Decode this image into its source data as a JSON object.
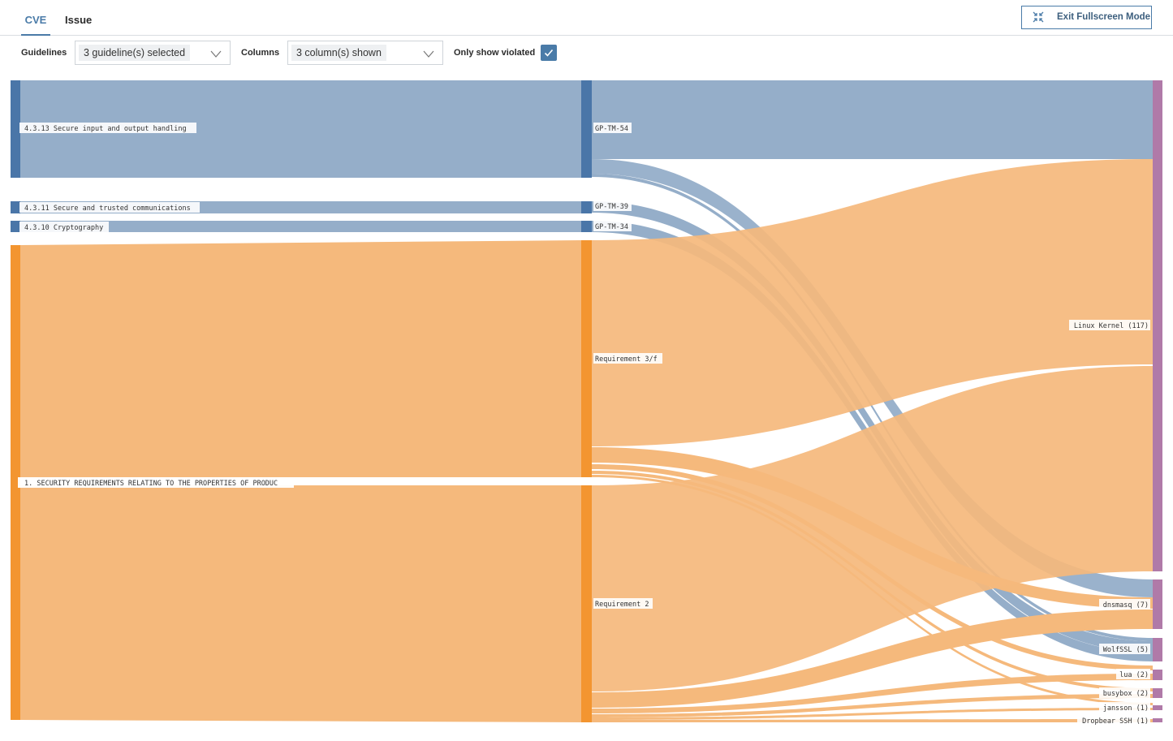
{
  "tabs": [
    {
      "label": "CVE",
      "active": true
    },
    {
      "label": "Issue",
      "active": false
    }
  ],
  "header": {
    "exit_fullscreen_label": "Exit Fullscreen Mode"
  },
  "filters": {
    "guidelines_label": "Guidelines",
    "guidelines_value": "3 guideline(s) selected",
    "columns_label": "Columns",
    "columns_value": "3 column(s) shown",
    "only_violated_label": "Only show violated",
    "only_violated_checked": true
  },
  "colors": {
    "accent": "#4a7ba8",
    "blue_node": "#4a76a8",
    "blue_link": "#95aec9",
    "orange_node": "#f39530",
    "orange_link": "#f5b97c",
    "purple_node": "#b07aa8"
  },
  "sankey": {
    "guidelines": [
      {
        "label": "4.3.13 Secure input and output handling"
      },
      {
        "label": "4.3.11 Secure and trusted communications"
      },
      {
        "label": "4.3.10 Cryptography"
      },
      {
        "label": "1. SECURITY REQUIREMENTS RELATING TO THE PROPERTIES OF PRODUC"
      }
    ],
    "requirements": [
      {
        "label": "GP-TM-54"
      },
      {
        "label": "GP-TM-39"
      },
      {
        "label": "GP-TM-34"
      },
      {
        "label": "Requirement 3/f"
      },
      {
        "label": "Requirement 2"
      }
    ],
    "components": [
      {
        "label": "Linux Kernel (117)"
      },
      {
        "label": "dnsmasq (7)"
      },
      {
        "label": "WolfSSL (5)"
      },
      {
        "label": "lua (2)"
      },
      {
        "label": "busybox (2)"
      },
      {
        "label": "jansson (1)"
      },
      {
        "label": "Dropbear SSH (1)"
      }
    ]
  }
}
